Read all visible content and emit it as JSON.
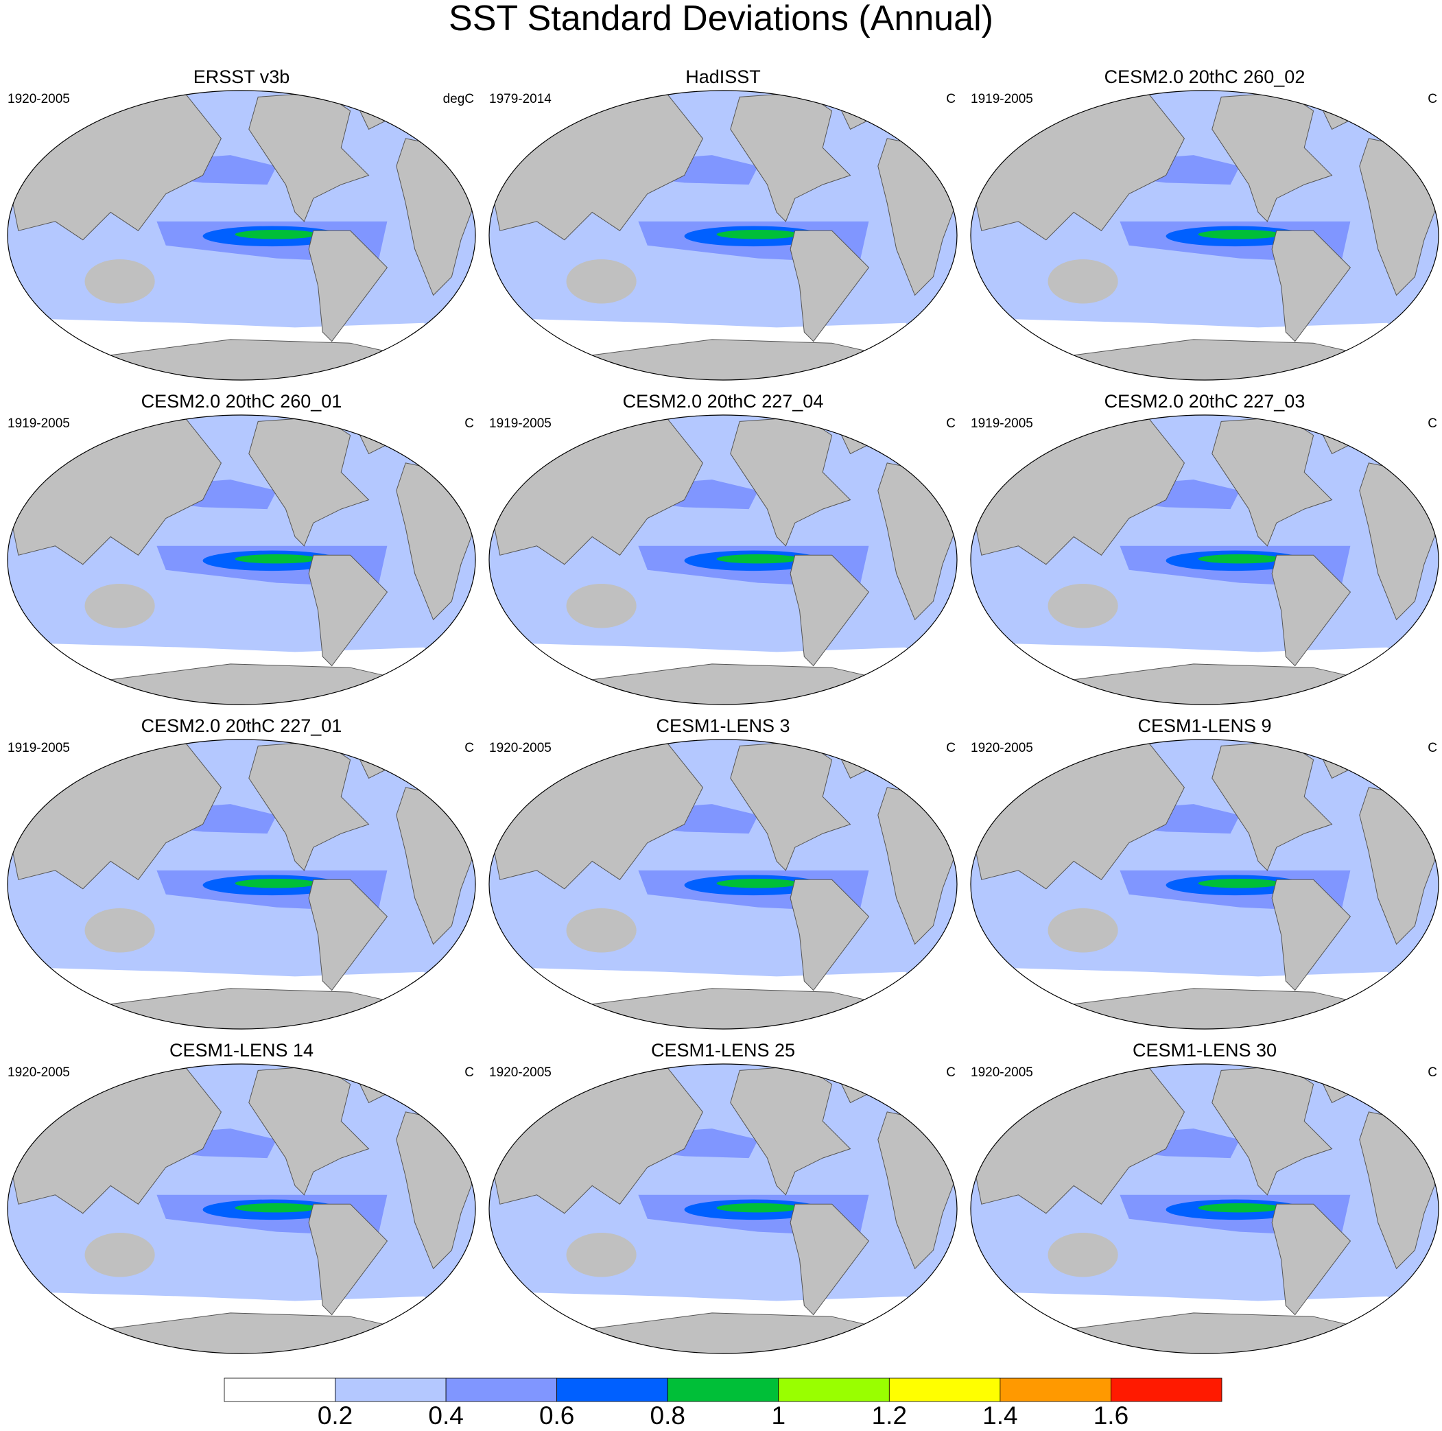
{
  "title": "SST Standard Deviations (Annual)",
  "panels": [
    {
      "title": "ERSST v3b",
      "period": "1920-2005",
      "units": "degC"
    },
    {
      "title": "HadISST",
      "period": "1979-2014",
      "units": "C"
    },
    {
      "title": "CESM2.0 20thC 260_02",
      "period": "1919-2005",
      "units": "C"
    },
    {
      "title": "CESM2.0 20thC 260_01",
      "period": "1919-2005",
      "units": "C"
    },
    {
      "title": "CESM2.0 20thC 227_04",
      "period": "1919-2005",
      "units": "C"
    },
    {
      "title": "CESM2.0 20thC 227_03",
      "period": "1919-2005",
      "units": "C"
    },
    {
      "title": "CESM2.0 20thC 227_01",
      "period": "1919-2005",
      "units": "C"
    },
    {
      "title": "CESM1-LENS 3",
      "period": "1920-2005",
      "units": "C"
    },
    {
      "title": "CESM1-LENS 9",
      "period": "1920-2005",
      "units": "C"
    },
    {
      "title": "CESM1-LENS 14",
      "period": "1920-2005",
      "units": "C"
    },
    {
      "title": "CESM1-LENS 25",
      "period": "1920-2005",
      "units": "C"
    },
    {
      "title": "CESM1-LENS 30",
      "period": "1920-2005",
      "units": "C"
    }
  ],
  "colorbar": {
    "colors": [
      "#ffffff",
      "#b4c8ff",
      "#8096ff",
      "#0060ff",
      "#00bf38",
      "#99ff00",
      "#ffff00",
      "#ff9900",
      "#ff1a00"
    ],
    "levels": [
      0.2,
      0.4,
      0.6,
      0.8,
      1,
      1.2,
      1.4,
      1.6
    ]
  }
}
